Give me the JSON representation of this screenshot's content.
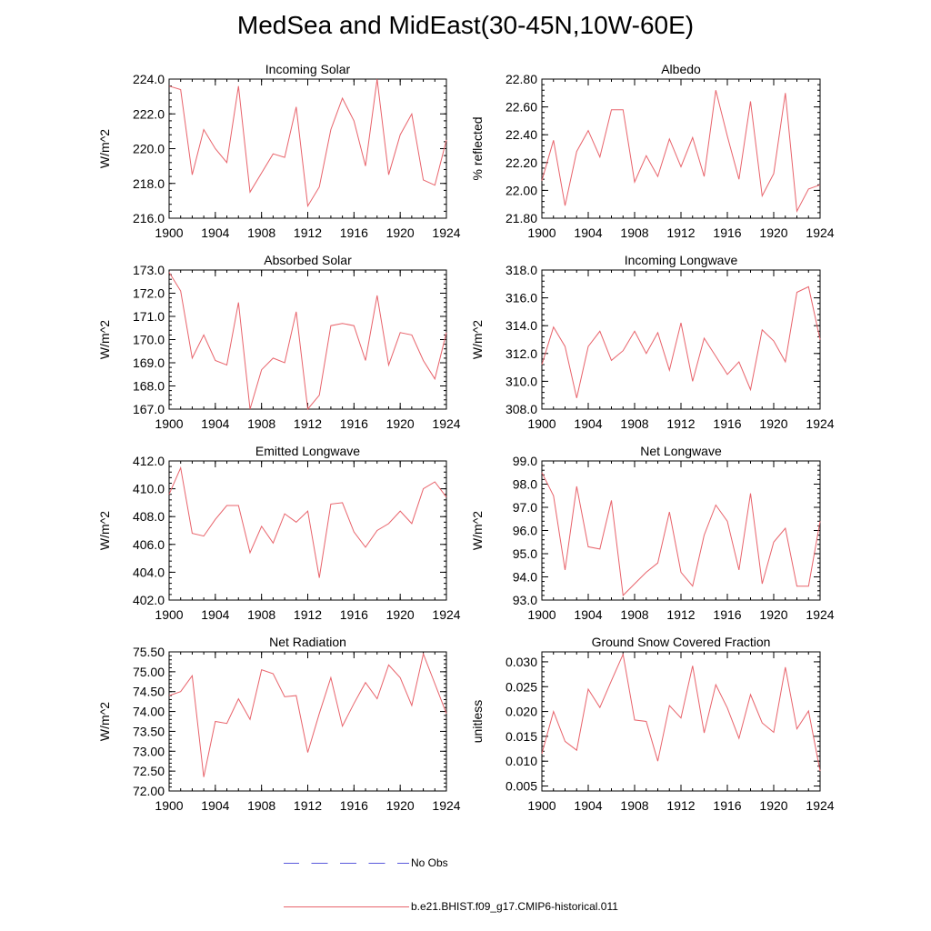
{
  "title": "MedSea and MidEast(30-45N,10W-60E)",
  "legend": {
    "obs_label": "No Obs",
    "obs_color": "#5a5adc",
    "model_label": "b.e21.BHIST.f09_g17.CMIP6-historical.011",
    "model_color": "#e8636b"
  },
  "chart_data": [
    {
      "type": "line",
      "title": "Incoming Solar",
      "ylabel": "W/m^2",
      "xlim": [
        1900,
        1924
      ],
      "ylim": [
        216.0,
        224.0
      ],
      "x_ticks": [
        "1900",
        "1904",
        "1908",
        "1912",
        "1916",
        "1920",
        "1924"
      ],
      "y_ticks": [
        "216.0",
        "218.0",
        "220.0",
        "222.0",
        "224.0"
      ],
      "x": [
        1900,
        1901,
        1902,
        1903,
        1904,
        1905,
        1906,
        1907,
        1908,
        1909,
        1910,
        1911,
        1912,
        1913,
        1914,
        1915,
        1916,
        1917,
        1918,
        1919,
        1920,
        1921,
        1922,
        1923,
        1924
      ],
      "series": [
        {
          "values": [
            223.6,
            223.4,
            218.5,
            221.1,
            220.0,
            219.2,
            223.6,
            217.5,
            218.6,
            219.7,
            219.5,
            222.4,
            216.7,
            217.8,
            221.1,
            222.9,
            221.6,
            219.0,
            224.0,
            218.5,
            220.8,
            222.0,
            218.2,
            217.9,
            220.5
          ]
        }
      ]
    },
    {
      "type": "line",
      "title": "Albedo",
      "ylabel": "% reflected",
      "xlim": [
        1900,
        1924
      ],
      "ylim": [
        21.8,
        22.8
      ],
      "x_ticks": [
        "1900",
        "1904",
        "1908",
        "1912",
        "1916",
        "1920",
        "1924"
      ],
      "y_ticks": [
        "21.80",
        "22.00",
        "22.20",
        "22.40",
        "22.60",
        "22.80"
      ],
      "x": [
        1900,
        1901,
        1902,
        1903,
        1904,
        1905,
        1906,
        1907,
        1908,
        1909,
        1910,
        1911,
        1912,
        1913,
        1914,
        1915,
        1916,
        1917,
        1918,
        1919,
        1920,
        1921,
        1922,
        1923,
        1924
      ],
      "series": [
        {
          "values": [
            22.07,
            22.36,
            21.89,
            22.28,
            22.43,
            22.24,
            22.58,
            22.58,
            22.06,
            22.25,
            22.1,
            22.37,
            22.17,
            22.38,
            22.1,
            22.72,
            22.39,
            22.08,
            22.64,
            21.96,
            22.12,
            22.7,
            21.85,
            22.01,
            22.04
          ]
        }
      ]
    },
    {
      "type": "line",
      "title": "Absorbed Solar",
      "ylabel": "W/m^2",
      "xlim": [
        1900,
        1924
      ],
      "ylim": [
        167.0,
        173.0
      ],
      "x_ticks": [
        "1900",
        "1904",
        "1908",
        "1912",
        "1916",
        "1920",
        "1924"
      ],
      "y_ticks": [
        "167.0",
        "168.0",
        "169.0",
        "170.0",
        "171.0",
        "172.0",
        "173.0"
      ],
      "x": [
        1900,
        1901,
        1902,
        1903,
        1904,
        1905,
        1906,
        1907,
        1908,
        1909,
        1910,
        1911,
        1912,
        1913,
        1914,
        1915,
        1916,
        1917,
        1918,
        1919,
        1920,
        1921,
        1922,
        1923,
        1924
      ],
      "series": [
        {
          "values": [
            172.9,
            172.1,
            169.2,
            170.2,
            169.1,
            168.9,
            171.6,
            167.0,
            168.7,
            169.2,
            169.0,
            171.2,
            167.0,
            167.6,
            170.6,
            170.7,
            170.6,
            169.1,
            171.9,
            168.9,
            170.3,
            170.2,
            169.1,
            168.3,
            170.3
          ]
        }
      ]
    },
    {
      "type": "line",
      "title": "Incoming Longwave",
      "ylabel": "W/m^2",
      "xlim": [
        1900,
        1924
      ],
      "ylim": [
        308.0,
        318.0
      ],
      "x_ticks": [
        "1900",
        "1904",
        "1908",
        "1912",
        "1916",
        "1920",
        "1924"
      ],
      "y_ticks": [
        "308.0",
        "310.0",
        "312.0",
        "314.0",
        "316.0",
        "318.0"
      ],
      "x": [
        1900,
        1901,
        1902,
        1903,
        1904,
        1905,
        1906,
        1907,
        1908,
        1909,
        1910,
        1911,
        1912,
        1913,
        1914,
        1915,
        1916,
        1917,
        1918,
        1919,
        1920,
        1921,
        1922,
        1923,
        1924
      ],
      "series": [
        {
          "values": [
            311.2,
            313.9,
            312.5,
            308.8,
            312.5,
            313.6,
            311.5,
            312.2,
            313.6,
            312.0,
            313.5,
            310.8,
            314.2,
            310.0,
            313.1,
            311.8,
            310.5,
            311.4,
            309.4,
            313.7,
            312.9,
            311.4,
            316.4,
            316.8,
            313.0
          ]
        }
      ]
    },
    {
      "type": "line",
      "title": "Emitted Longwave",
      "ylabel": "W/m^2",
      "xlim": [
        1900,
        1924
      ],
      "ylim": [
        402.0,
        412.0
      ],
      "x_ticks": [
        "1900",
        "1904",
        "1908",
        "1912",
        "1916",
        "1920",
        "1924"
      ],
      "y_ticks": [
        "402.0",
        "404.0",
        "406.0",
        "408.0",
        "410.0",
        "412.0"
      ],
      "x": [
        1900,
        1901,
        1902,
        1903,
        1904,
        1905,
        1906,
        1907,
        1908,
        1909,
        1910,
        1911,
        1912,
        1913,
        1914,
        1915,
        1916,
        1917,
        1918,
        1919,
        1920,
        1921,
        1922,
        1923,
        1924
      ],
      "series": [
        {
          "values": [
            409.6,
            411.5,
            406.8,
            406.6,
            407.8,
            408.8,
            408.8,
            405.4,
            407.3,
            406.1,
            408.2,
            407.6,
            408.4,
            403.6,
            408.9,
            409.0,
            406.9,
            405.8,
            407.0,
            407.5,
            408.4,
            407.5,
            410.0,
            410.5,
            409.4
          ]
        }
      ]
    },
    {
      "type": "line",
      "title": "Net Longwave",
      "ylabel": "W/m^2",
      "xlim": [
        1900,
        1924
      ],
      "ylim": [
        93.0,
        99.0
      ],
      "x_ticks": [
        "1900",
        "1904",
        "1908",
        "1912",
        "1916",
        "1920",
        "1924"
      ],
      "y_ticks": [
        "93.0",
        "94.0",
        "95.0",
        "96.0",
        "97.0",
        "98.0",
        "99.0"
      ],
      "x": [
        1900,
        1901,
        1902,
        1903,
        1904,
        1905,
        1906,
        1907,
        1908,
        1909,
        1910,
        1911,
        1912,
        1913,
        1914,
        1915,
        1916,
        1917,
        1918,
        1919,
        1920,
        1921,
        1922,
        1923,
        1924
      ],
      "series": [
        {
          "values": [
            98.5,
            97.5,
            94.3,
            97.9,
            95.3,
            95.2,
            97.3,
            93.2,
            93.7,
            94.2,
            94.6,
            96.8,
            94.2,
            93.6,
            95.8,
            97.1,
            96.4,
            94.3,
            97.6,
            93.7,
            95.5,
            96.1,
            93.6,
            93.6,
            96.4
          ]
        }
      ]
    },
    {
      "type": "line",
      "title": "Net Radiation",
      "ylabel": "W/m^2",
      "xlim": [
        1900,
        1924
      ],
      "ylim": [
        72.0,
        75.5
      ],
      "x_ticks": [
        "1900",
        "1904",
        "1908",
        "1912",
        "1916",
        "1920",
        "1924"
      ],
      "y_ticks": [
        "72.00",
        "72.50",
        "73.00",
        "73.50",
        "74.00",
        "74.50",
        "75.00",
        "75.50"
      ],
      "x": [
        1900,
        1901,
        1902,
        1903,
        1904,
        1905,
        1906,
        1907,
        1908,
        1909,
        1910,
        1911,
        1912,
        1913,
        1914,
        1915,
        1916,
        1917,
        1918,
        1919,
        1920,
        1921,
        1922,
        1923,
        1924
      ],
      "series": [
        {
          "values": [
            74.4,
            74.5,
            74.9,
            72.35,
            73.75,
            73.7,
            74.32,
            73.8,
            75.05,
            74.95,
            74.37,
            74.4,
            72.97,
            73.95,
            74.85,
            73.63,
            74.2,
            74.73,
            74.32,
            75.17,
            74.85,
            74.15,
            75.45,
            74.7,
            73.95
          ]
        }
      ]
    },
    {
      "type": "line",
      "title": "Ground Snow Covered Fraction",
      "ylabel": "unitless",
      "xlim": [
        1900,
        1924
      ],
      "ylim": [
        0.004,
        0.032
      ],
      "x_ticks": [
        "1900",
        "1904",
        "1908",
        "1912",
        "1916",
        "1920",
        "1924"
      ],
      "y_ticks": [
        "0.005",
        "0.010",
        "0.015",
        "0.020",
        "0.025",
        "0.030"
      ],
      "y_tick_values": [
        0.005,
        0.01,
        0.015,
        0.02,
        0.025,
        0.03
      ],
      "x": [
        1900,
        1901,
        1902,
        1903,
        1904,
        1905,
        1906,
        1907,
        1908,
        1909,
        1910,
        1911,
        1912,
        1913,
        1914,
        1915,
        1916,
        1917,
        1918,
        1919,
        1920,
        1921,
        1922,
        1923,
        1924
      ],
      "series": [
        {
          "values": [
            0.0115,
            0.02,
            0.014,
            0.0122,
            0.0245,
            0.0208,
            0.0262,
            0.0315,
            0.0183,
            0.018,
            0.01,
            0.0212,
            0.0187,
            0.0292,
            0.0157,
            0.0254,
            0.0207,
            0.0146,
            0.0234,
            0.0177,
            0.0158,
            0.0289,
            0.0165,
            0.0201,
            0.008
          ]
        }
      ]
    }
  ]
}
